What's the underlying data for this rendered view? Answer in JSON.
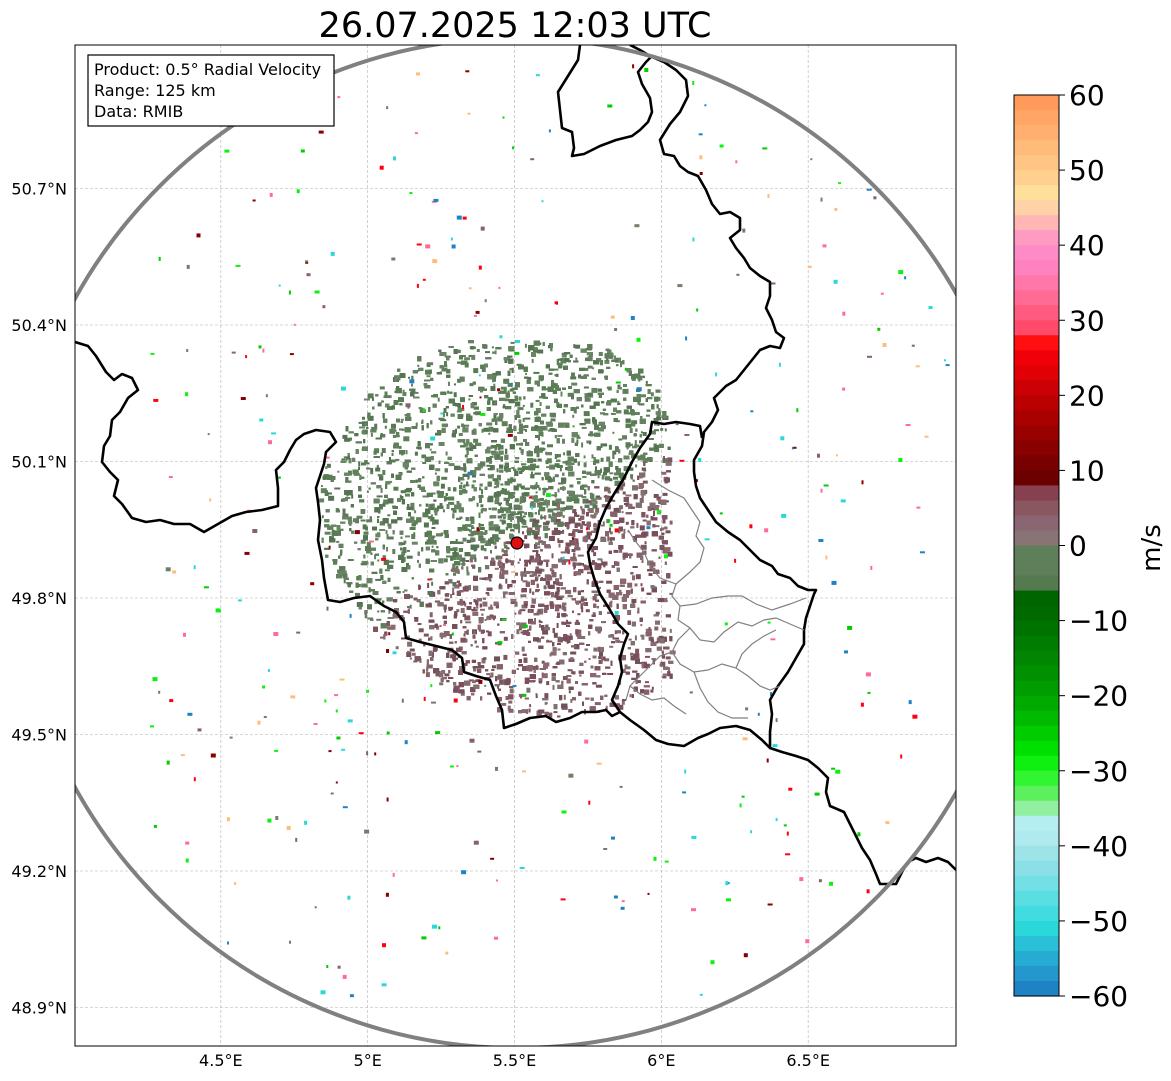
{
  "title": "26.07.2025 12:03 UTC",
  "info_box": {
    "product": "Product: 0.5° Radial Velocity",
    "range": "Range: 125 km",
    "data": "Data: RMIB"
  },
  "map": {
    "lon_range": [
      4.0,
      7.0
    ],
    "lat_range": [
      48.8,
      51.0
    ],
    "lon_ticks": [
      {
        "value": 4.5,
        "label": "4.5°E"
      },
      {
        "value": 5.0,
        "label": "5°E"
      },
      {
        "value": 5.5,
        "label": "5.5°E"
      },
      {
        "value": 6.0,
        "label": "6°E"
      },
      {
        "value": 6.5,
        "label": "6.5°E"
      }
    ],
    "lat_ticks": [
      {
        "value": 50.7,
        "label": "50.7°N"
      },
      {
        "value": 50.4,
        "label": "50.4°N"
      },
      {
        "value": 50.1,
        "label": "50.1°N"
      },
      {
        "value": 49.8,
        "label": "49.8°N"
      },
      {
        "value": 49.5,
        "label": "49.5°N"
      },
      {
        "value": 49.2,
        "label": "49.2°N"
      },
      {
        "value": 48.9,
        "label": "48.9°N"
      }
    ],
    "radar_site": {
      "lon": 5.5,
      "lat": 49.91
    },
    "range_km": 125,
    "gridlines": true
  },
  "colorbar": {
    "label": "m/s",
    "min": -60,
    "max": 60,
    "ticks": [
      {
        "value": 60,
        "label": "60"
      },
      {
        "value": 50,
        "label": "50"
      },
      {
        "value": 40,
        "label": "40"
      },
      {
        "value": 30,
        "label": "30"
      },
      {
        "value": 20,
        "label": "20"
      },
      {
        "value": 10,
        "label": "10"
      },
      {
        "value": 0,
        "label": "0"
      },
      {
        "value": -10,
        "label": "−10"
      },
      {
        "value": -20,
        "label": "−20"
      },
      {
        "value": -30,
        "label": "−30"
      },
      {
        "value": -40,
        "label": "−40"
      },
      {
        "value": -50,
        "label": "−50"
      },
      {
        "value": -60,
        "label": "−60"
      }
    ],
    "bands": [
      {
        "from": 58,
        "to": 60,
        "color": "#ff9a5a"
      },
      {
        "from": 56,
        "to": 58,
        "color": "#ffa566"
      },
      {
        "from": 54,
        "to": 56,
        "color": "#ffb070"
      },
      {
        "from": 52,
        "to": 54,
        "color": "#ffbb7a"
      },
      {
        "from": 50,
        "to": 52,
        "color": "#ffc584"
      },
      {
        "from": 48,
        "to": 50,
        "color": "#ffd08e"
      },
      {
        "from": 46,
        "to": 48,
        "color": "#ffe09a"
      },
      {
        "from": 44,
        "to": 46,
        "color": "#ffd2a8"
      },
      {
        "from": 42,
        "to": 44,
        "color": "#ffb6b4"
      },
      {
        "from": 40,
        "to": 42,
        "color": "#ff9ac0"
      },
      {
        "from": 38,
        "to": 40,
        "color": "#ff8ac8"
      },
      {
        "from": 36,
        "to": 38,
        "color": "#ff82c0"
      },
      {
        "from": 34,
        "to": 36,
        "color": "#ff78a8"
      },
      {
        "from": 32,
        "to": 34,
        "color": "#ff6b94"
      },
      {
        "from": 30,
        "to": 32,
        "color": "#ff5a80"
      },
      {
        "from": 28,
        "to": 30,
        "color": "#ff4a6a"
      },
      {
        "from": 26,
        "to": 28,
        "color": "#ff0f10"
      },
      {
        "from": 24,
        "to": 26,
        "color": "#f00008"
      },
      {
        "from": 22,
        "to": 24,
        "color": "#e00006"
      },
      {
        "from": 20,
        "to": 22,
        "color": "#cc0004"
      },
      {
        "from": 18,
        "to": 20,
        "color": "#bb0002"
      },
      {
        "from": 16,
        "to": 18,
        "color": "#aa0000"
      },
      {
        "from": 14,
        "to": 16,
        "color": "#990000"
      },
      {
        "from": 12,
        "to": 14,
        "color": "#880000"
      },
      {
        "from": 10,
        "to": 12,
        "color": "#780000"
      },
      {
        "from": 8,
        "to": 10,
        "color": "#6c0000"
      },
      {
        "from": 6,
        "to": 8,
        "color": "#864050"
      },
      {
        "from": 4,
        "to": 6,
        "color": "#8a5660"
      },
      {
        "from": 2,
        "to": 4,
        "color": "#8a6672"
      },
      {
        "from": 0,
        "to": 2,
        "color": "#887474"
      },
      {
        "from": -2,
        "to": 0,
        "color": "#6f8068"
      },
      {
        "from": -4,
        "to": 0,
        "color": "#5f7e5a"
      },
      {
        "from": -6,
        "to": -4,
        "color": "#567a50"
      },
      {
        "from": -8,
        "to": -6,
        "color": "#006400"
      },
      {
        "from": -10,
        "to": -8,
        "color": "#006a00"
      },
      {
        "from": -12,
        "to": -10,
        "color": "#007200"
      },
      {
        "from": -14,
        "to": -12,
        "color": "#007c00"
      },
      {
        "from": -16,
        "to": -14,
        "color": "#008600"
      },
      {
        "from": -18,
        "to": -16,
        "color": "#009000"
      },
      {
        "from": -20,
        "to": -18,
        "color": "#009c00"
      },
      {
        "from": -22,
        "to": -20,
        "color": "#00aa00"
      },
      {
        "from": -24,
        "to": -22,
        "color": "#00ba00"
      },
      {
        "from": -26,
        "to": -24,
        "color": "#00cc00"
      },
      {
        "from": -28,
        "to": -26,
        "color": "#00e000"
      },
      {
        "from": -30,
        "to": -28,
        "color": "#10f010"
      },
      {
        "from": -32,
        "to": -30,
        "color": "#30f530"
      },
      {
        "from": -34,
        "to": -32,
        "color": "#5cf05c"
      },
      {
        "from": -36,
        "to": -34,
        "color": "#90f0a0"
      },
      {
        "from": -38,
        "to": -36,
        "color": "#b4eef0"
      },
      {
        "from": -40,
        "to": -38,
        "color": "#aeeaee"
      },
      {
        "from": -42,
        "to": -40,
        "color": "#9de4e8"
      },
      {
        "from": -44,
        "to": -42,
        "color": "#8ae0e6"
      },
      {
        "from": -46,
        "to": -44,
        "color": "#72e0e4"
      },
      {
        "from": -48,
        "to": -46,
        "color": "#5adee2"
      },
      {
        "from": -50,
        "to": -48,
        "color": "#40dcdf"
      },
      {
        "from": -52,
        "to": -50,
        "color": "#2ad8da"
      },
      {
        "from": -54,
        "to": -52,
        "color": "#2ac0d8"
      },
      {
        "from": -56,
        "to": -54,
        "color": "#26abd2"
      },
      {
        "from": -58,
        "to": -56,
        "color": "#2498cc"
      },
      {
        "from": -60,
        "to": -58,
        "color": "#1f82c4"
      }
    ]
  },
  "colors": {
    "range_ring": "#808080",
    "border": "#000000",
    "admin_border": "#808080",
    "grid": "#b0b0b0",
    "radar_site": "#dd1111",
    "toward": "#5f7e5a",
    "away": "#7e5660"
  }
}
